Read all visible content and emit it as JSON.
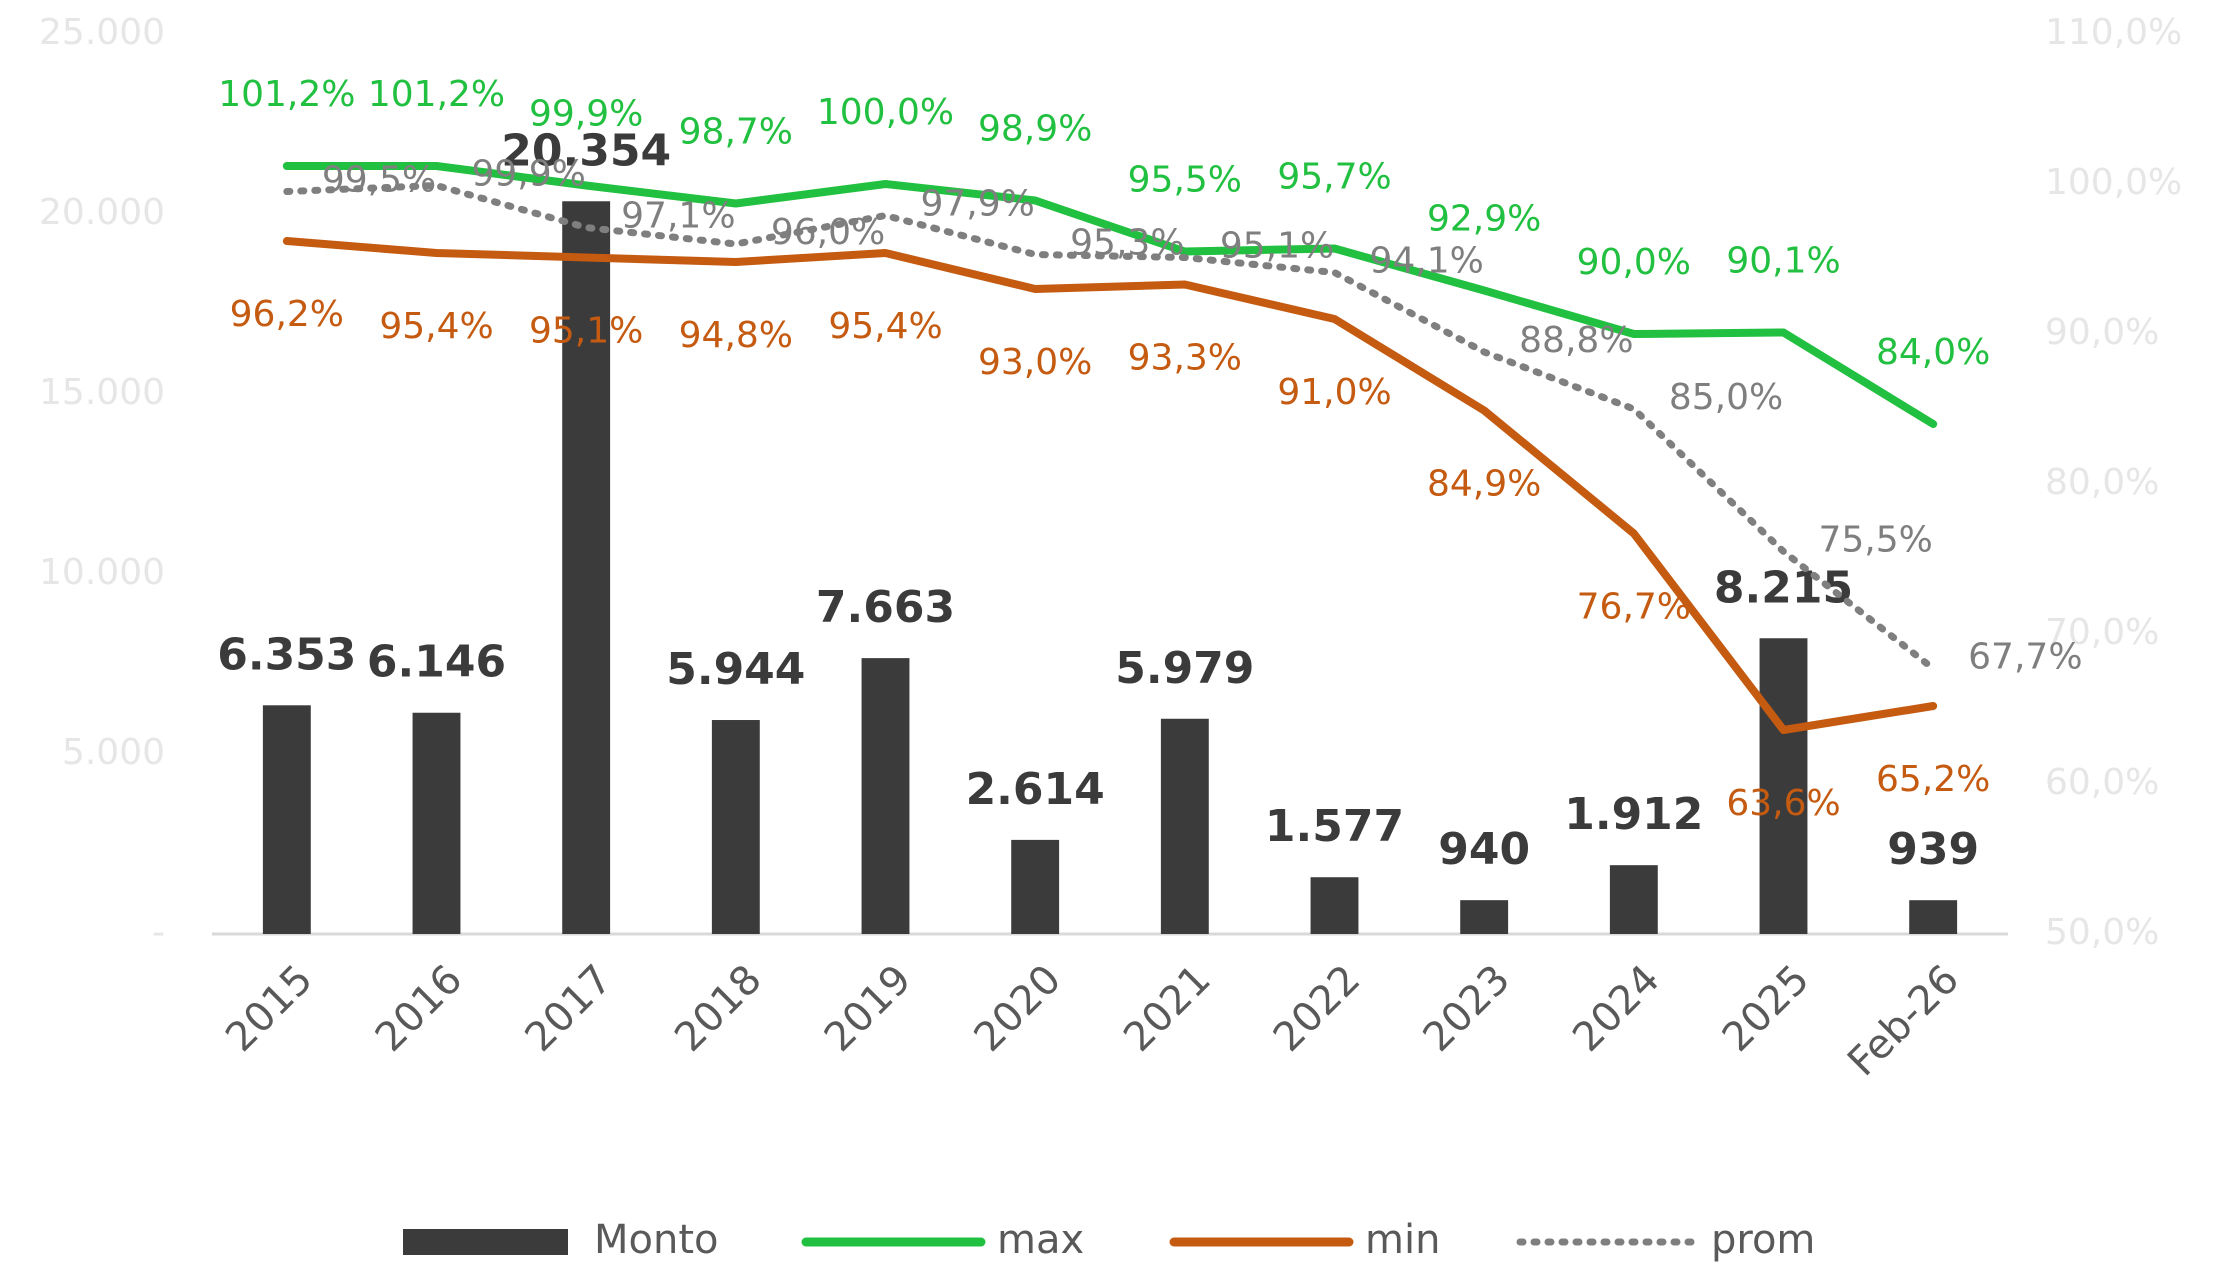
{
  "chart_data": {
    "type": "bar-line",
    "categories": [
      "2015",
      "2016",
      "2017",
      "2018",
      "2019",
      "2020",
      "2021",
      "2022",
      "2023",
      "2024",
      "2025",
      "Feb-26"
    ],
    "series": [
      {
        "name": "Monto",
        "type": "bar",
        "axis": "y",
        "color": "#3b3b3b",
        "values": [
          6353,
          6146,
          20354,
          5944,
          7663,
          2614,
          5979,
          1577,
          940,
          1912,
          8215,
          939
        ],
        "value_labels": [
          "6.353",
          "6.146",
          "20.354",
          "5.944",
          "7.663",
          "2.614",
          "5.979",
          "1.577",
          "940",
          "1.912",
          "8.215",
          "939"
        ]
      },
      {
        "name": "max",
        "type": "line",
        "axis": "y2",
        "color": "#22c040",
        "dash": false,
        "values": [
          101.2,
          101.2,
          99.9,
          98.7,
          100.0,
          98.9,
          95.5,
          95.7,
          92.9,
          90.0,
          90.1,
          84.0
        ],
        "value_labels": [
          "101,2%",
          "101,2%",
          "99,9%",
          "98,7%",
          "100,0%",
          "98,9%",
          "95,5%",
          "95,7%",
          "92,9%",
          "90,0%",
          "90,1%",
          "84,0%"
        ]
      },
      {
        "name": "min",
        "type": "line",
        "axis": "y2",
        "color": "#c55a11",
        "dash": false,
        "values": [
          96.2,
          95.4,
          95.1,
          94.8,
          95.4,
          93.0,
          93.3,
          91.0,
          84.9,
          76.7,
          63.6,
          65.2
        ],
        "value_labels": [
          "96,2%",
          "95,4%",
          "95,1%",
          "94,8%",
          "95,4%",
          "93,0%",
          "93,3%",
          "91,0%",
          "84,9%",
          "76,7%",
          "63,6%",
          "65,2%"
        ]
      },
      {
        "name": "prom",
        "type": "line",
        "axis": "y2",
        "color": "#7f7f7f",
        "dash": true,
        "values": [
          99.5,
          99.9,
          97.1,
          96.0,
          97.9,
          95.3,
          95.1,
          94.1,
          88.8,
          85.0,
          75.5,
          67.7
        ],
        "value_labels": [
          "99,5%",
          "99,9%",
          "97,1%",
          "96,0%",
          "97,9%",
          "95,3%",
          "95,1%",
          "94,1%",
          "88,8%",
          "85,0%",
          "75,5%",
          "67,7%"
        ]
      }
    ],
    "ylim": [
      0,
      25000
    ],
    "yticks": [
      {
        "value": 0,
        "label": "-"
      },
      {
        "value": 5000,
        "label": "5.000"
      },
      {
        "value": 10000,
        "label": "10.000"
      },
      {
        "value": 15000,
        "label": "15.000"
      },
      {
        "value": 20000,
        "label": "20.000"
      },
      {
        "value": 25000,
        "label": "25.000"
      }
    ],
    "y2lim": [
      50,
      110
    ],
    "y2ticks": [
      {
        "value": 50,
        "label": "50,0%"
      },
      {
        "value": 60,
        "label": "60,0%"
      },
      {
        "value": 70,
        "label": "70,0%"
      },
      {
        "value": 80,
        "label": "80,0%"
      },
      {
        "value": 90,
        "label": "90,0%"
      },
      {
        "value": 100,
        "label": "100,0%"
      },
      {
        "value": 110,
        "label": "110,0%"
      }
    ],
    "grid": false,
    "legend": "bottom"
  }
}
